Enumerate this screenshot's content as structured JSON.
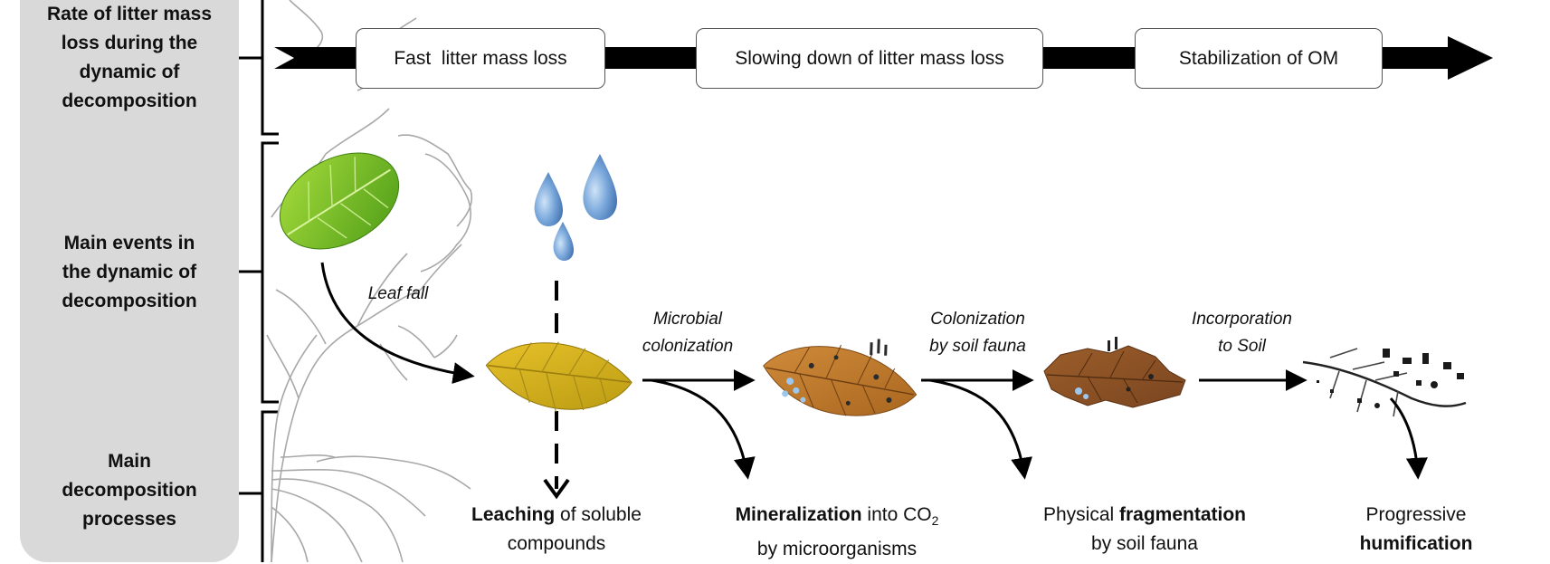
{
  "rows": {
    "rate": [
      "Rate of litter mass",
      "loss during the",
      "dynamic of",
      "decomposition"
    ],
    "events": [
      "Main events in",
      "the dynamic of",
      "decomposition"
    ],
    "processes": [
      "Main",
      "decomposition",
      "processes"
    ]
  },
  "stages": {
    "fast": "Fast  litter mass loss",
    "slowing": "Slowing down of litter mass loss",
    "stabilization": "Stabilization of OM"
  },
  "events": {
    "leaf_fall": "Leaf fall",
    "microbial_1": "Microbial",
    "microbial_2": "colonization",
    "colonization_1": "Colonization",
    "colonization_2": "by soil fauna",
    "incorporation_1": "Incorporation",
    "incorporation_2": "to Soil"
  },
  "processes": {
    "leaching_bold": "Leaching",
    "leaching_rest": " of soluble",
    "leaching_line2": "compounds",
    "mineral_bold": "Mineralization",
    "mineral_rest": " into CO",
    "mineral_sub": "2",
    "mineral_line2": "by microorganisms",
    "frag_pre": "Physical ",
    "frag_bold": "fragmentation",
    "frag_line2": "by soil fauna",
    "humif_line1": "Progressive",
    "humif_bold": "humification"
  },
  "colors": {
    "panel": "#d9d9d9",
    "arrow": "#000000",
    "tree": "#9a9a9a",
    "fresh_leaf": "#7cc22a",
    "yellow_leaf": "#d9b81a",
    "brown_leaf": "#c07a2c",
    "dark_leaf": "#8a5126",
    "water": "#6f9fd8"
  },
  "icons": [
    "fresh-leaf-icon",
    "water-drops-icon",
    "yellow-leaf-icon",
    "colonized-leaf-icon",
    "fragmented-leaf-icon",
    "humus-icon",
    "tree-outline-icon"
  ]
}
